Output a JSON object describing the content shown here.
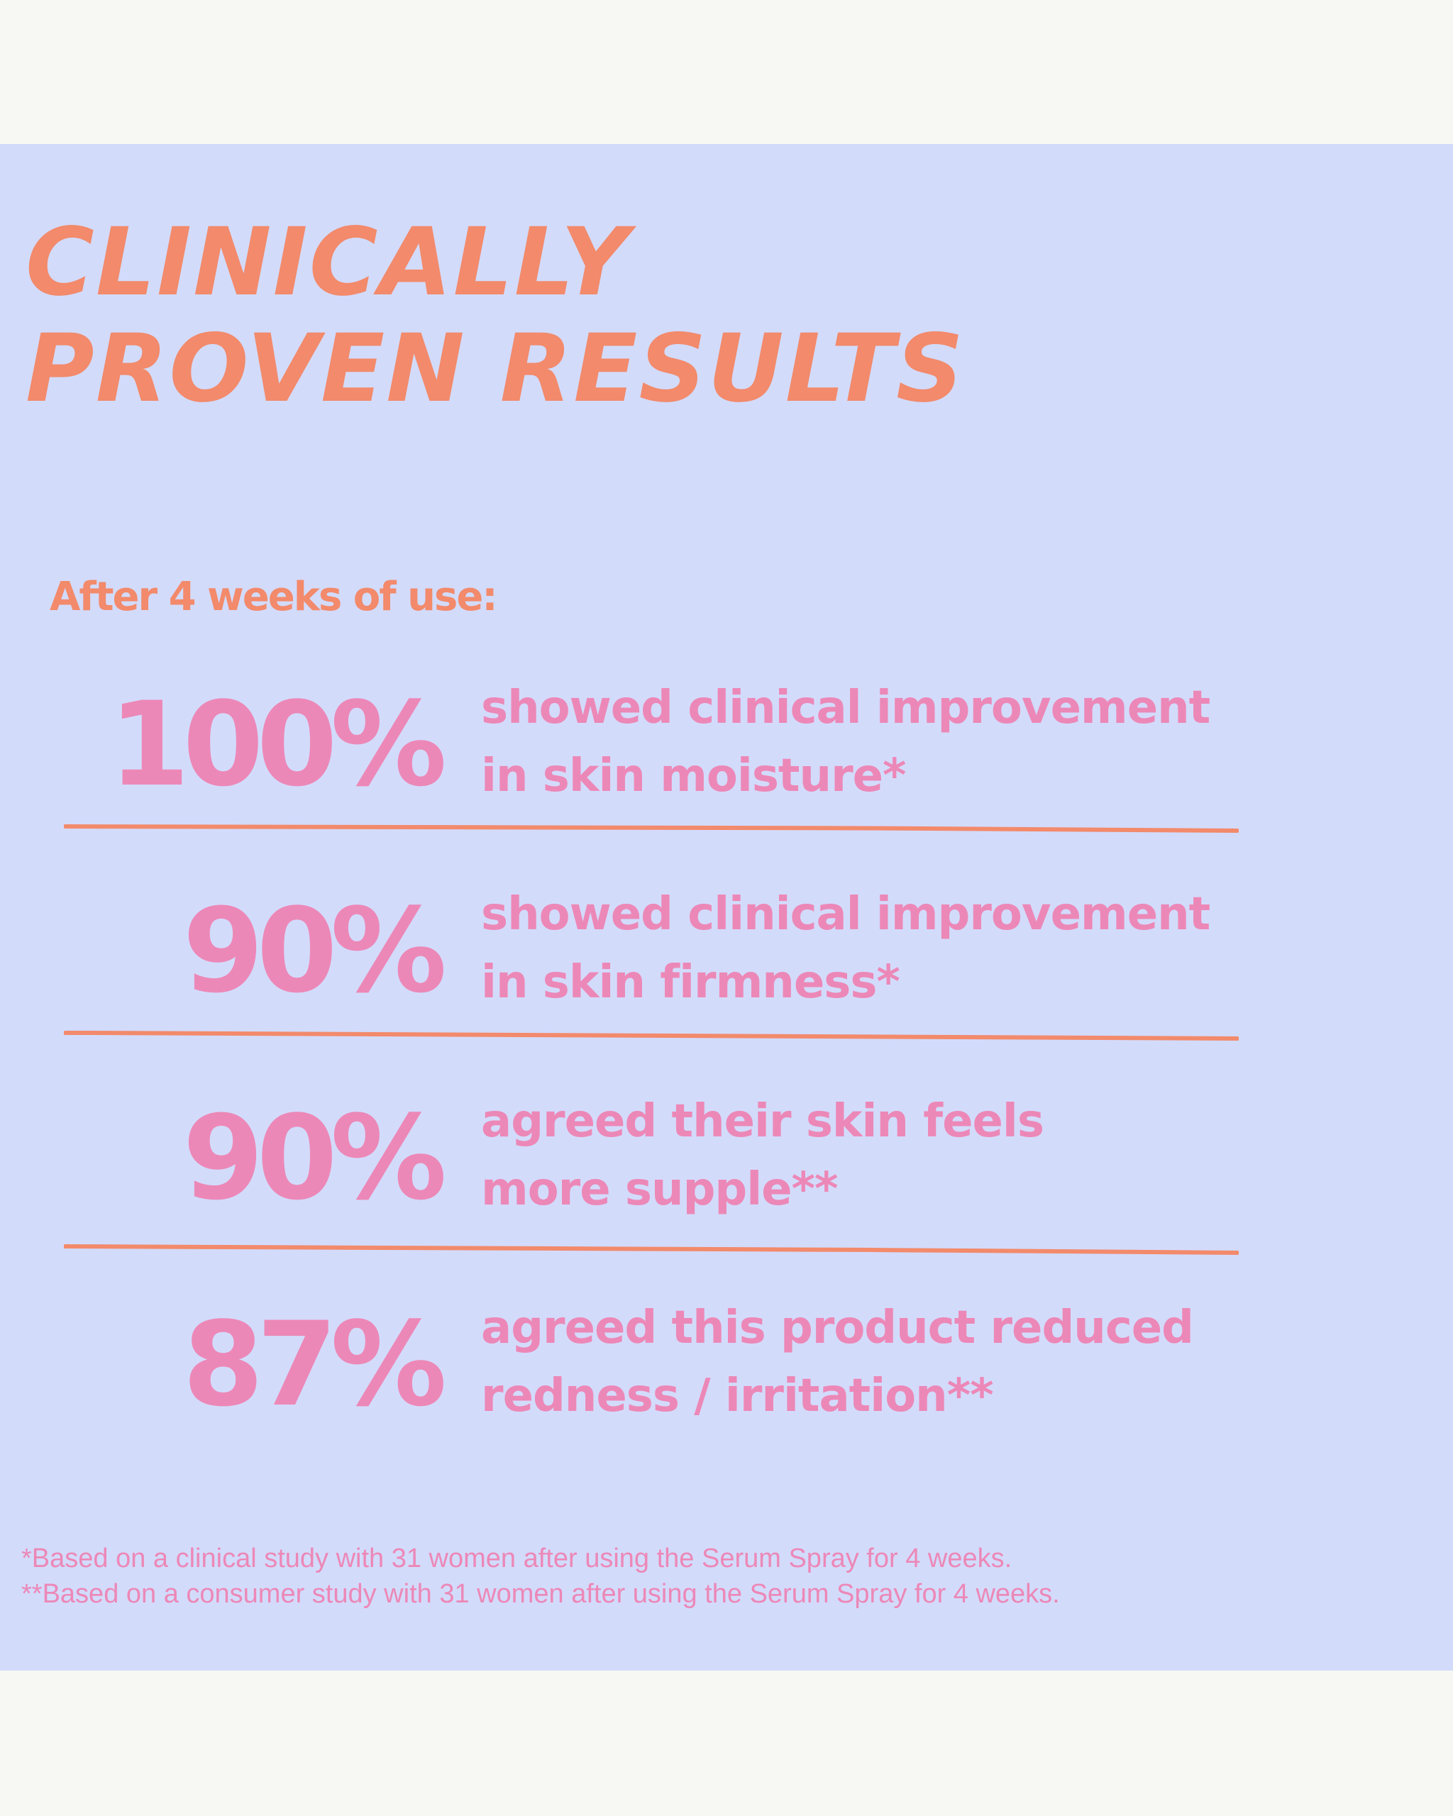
{
  "headline": {
    "line1": "CLINICALLY",
    "line2": "PROVEN RESULTS"
  },
  "intro": "After 4 weeks of use:",
  "stats": [
    {
      "value": "100%",
      "line1": "showed clinical improvement",
      "line2": "in skin moisture*"
    },
    {
      "value": "90%",
      "line1": "showed clinical improvement",
      "line2": "in skin firmness*"
    },
    {
      "value": "90%",
      "line1": "agreed their skin feels",
      "line2": "more supple**"
    },
    {
      "value": "87%",
      "line1": "agreed this product reduced",
      "line2": "redness / irritation**"
    }
  ],
  "footnotes": [
    "*Based on a clinical study with 31 women after using the Serum Spray for 4 weeks.",
    "**Based on a consumer study with 31 women after using the Serum Spray for 4 weeks."
  ],
  "colors": {
    "background": "#f7f8f3",
    "panel": "#d3dbfb",
    "accent_orange": "#f28a6b",
    "accent_pink": "#ec88b7"
  }
}
